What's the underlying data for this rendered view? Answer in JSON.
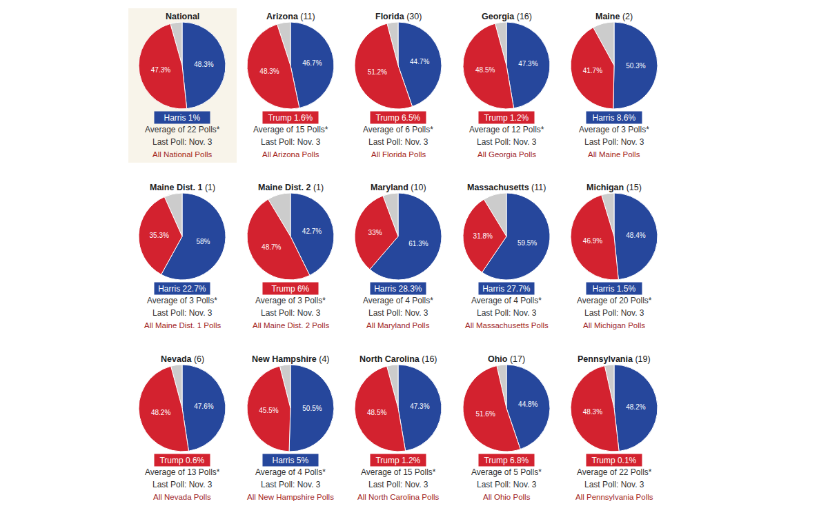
{
  "chart_data": [
    {
      "type": "pie",
      "title": "National",
      "values": [
        48.3,
        4.4,
        47.3
      ],
      "value_labels": [
        "48.3%",
        null,
        "47.3%"
      ],
      "colors": [
        "#26479c",
        "#cccccc",
        "#d3222f"
      ],
      "data_labels": true,
      "margin_label": "Harris 1%",
      "margin_color": "#26479c",
      "polls_note": "Average of 22 Polls*",
      "last_poll": "Last Poll: Nov. 3",
      "link": "All National Polls"
    },
    {
      "type": "pie",
      "title": "Arizona",
      "title_note": "(11)",
      "values": [
        46.7,
        5.0,
        48.3
      ],
      "value_labels": [
        "46.7%",
        null,
        "48.3%"
      ],
      "colors": [
        "#26479c",
        "#cccccc",
        "#d3222f"
      ],
      "data_labels": true,
      "margin_label": "Trump 1.6%",
      "margin_color": "#d3222f",
      "polls_note": "Average of 15 Polls*",
      "last_poll": "Last Poll: Nov. 3",
      "link": "All Arizona Polls"
    },
    {
      "type": "pie",
      "title": "Florida",
      "title_note": "(30)",
      "values": [
        44.7,
        4.1,
        51.2
      ],
      "value_labels": [
        "44.7%",
        null,
        "51.2%"
      ],
      "colors": [
        "#26479c",
        "#cccccc",
        "#d3222f"
      ],
      "data_labels": true,
      "margin_label": "Trump 6.5%",
      "margin_color": "#d3222f",
      "polls_note": "Average of 6 Polls*",
      "last_poll": "Last Poll: Nov. 3",
      "link": "All Florida Polls"
    },
    {
      "type": "pie",
      "title": "Georgia",
      "title_note": "(16)",
      "values": [
        47.3,
        4.2,
        48.5
      ],
      "value_labels": [
        "47.3%",
        null,
        "48.5%"
      ],
      "colors": [
        "#26479c",
        "#cccccc",
        "#d3222f"
      ],
      "data_labels": true,
      "margin_label": "Trump 1.2%",
      "margin_color": "#d3222f",
      "polls_note": "Average of 12 Polls*",
      "last_poll": "Last Poll: Nov. 3",
      "link": "All Georgia Polls"
    },
    {
      "type": "pie",
      "title": "Maine",
      "title_note": "(2)",
      "values": [
        50.3,
        8.0,
        41.7
      ],
      "value_labels": [
        "50.3%",
        null,
        "41.7%"
      ],
      "colors": [
        "#26479c",
        "#cccccc",
        "#d3222f"
      ],
      "data_labels": true,
      "margin_label": "Harris 8.6%",
      "margin_color": "#26479c",
      "polls_note": "Average of 3 Polls*",
      "last_poll": "Last Poll: Nov. 3",
      "link": "All Maine Polls"
    },
    {
      "type": "pie",
      "title": "Maine Dist. 1",
      "title_note": "(1)",
      "values": [
        58,
        6.7,
        35.3
      ],
      "value_labels": [
        "58%",
        null,
        "35.3%"
      ],
      "colors": [
        "#26479c",
        "#cccccc",
        "#d3222f"
      ],
      "data_labels": true,
      "margin_label": "Harris 22.7%",
      "margin_color": "#26479c",
      "polls_note": "Average of 3 Polls*",
      "last_poll": "Last Poll: Nov. 3",
      "link": "All Maine Dist. 1 Polls"
    },
    {
      "type": "pie",
      "title": "Maine Dist. 2",
      "title_note": "(1)",
      "values": [
        42.7,
        8.6,
        48.7
      ],
      "value_labels": [
        "42.7%",
        null,
        "48.7%"
      ],
      "colors": [
        "#26479c",
        "#cccccc",
        "#d3222f"
      ],
      "data_labels": true,
      "margin_label": "Trump 6%",
      "margin_color": "#d3222f",
      "polls_note": "Average of 3 Polls*",
      "last_poll": "Last Poll: Nov. 3",
      "link": "All Maine Dist. 2 Polls"
    },
    {
      "type": "pie",
      "title": "Maryland",
      "title_note": "(10)",
      "values": [
        61.3,
        5.7,
        33
      ],
      "value_labels": [
        "61.3%",
        null,
        "33%"
      ],
      "colors": [
        "#26479c",
        "#cccccc",
        "#d3222f"
      ],
      "data_labels": true,
      "margin_label": "Harris 28.3%",
      "margin_color": "#26479c",
      "polls_note": "Average of 4 Polls*",
      "last_poll": "Last Poll: Nov. 3",
      "link": "All Maryland Polls"
    },
    {
      "type": "pie",
      "title": "Massachusetts",
      "title_note": "(11)",
      "values": [
        59.5,
        8.7,
        31.8
      ],
      "value_labels": [
        "59.5%",
        null,
        "31.8%"
      ],
      "colors": [
        "#26479c",
        "#cccccc",
        "#d3222f"
      ],
      "data_labels": true,
      "margin_label": "Harris 27.7%",
      "margin_color": "#26479c",
      "polls_note": "Average of 4 Polls*",
      "last_poll": "Last Poll: Nov. 3",
      "link": "All Massachusetts Polls"
    },
    {
      "type": "pie",
      "title": "Michigan",
      "title_note": "(15)",
      "values": [
        48.4,
        4.7,
        46.9
      ],
      "value_labels": [
        "48.4%",
        null,
        "46.9%"
      ],
      "colors": [
        "#26479c",
        "#cccccc",
        "#d3222f"
      ],
      "data_labels": true,
      "margin_label": "Harris 1.5%",
      "margin_color": "#26479c",
      "polls_note": "Average of 20 Polls*",
      "last_poll": "Last Poll: Nov. 3",
      "link": "All Michigan Polls"
    },
    {
      "type": "pie",
      "title": "Nevada",
      "title_note": "(6)",
      "values": [
        47.6,
        4.2,
        48.2
      ],
      "value_labels": [
        "47.6%",
        null,
        "48.2%"
      ],
      "colors": [
        "#26479c",
        "#cccccc",
        "#d3222f"
      ],
      "data_labels": true,
      "margin_label": "Trump 0.6%",
      "margin_color": "#d3222f",
      "polls_note": "Average of 13 Polls*",
      "last_poll": "Last Poll: Nov. 3",
      "link": "All Nevada Polls"
    },
    {
      "type": "pie",
      "title": "New Hampshire",
      "title_note": "(4)",
      "values": [
        50.5,
        4.0,
        45.5
      ],
      "value_labels": [
        "50.5%",
        null,
        "45.5%"
      ],
      "colors": [
        "#26479c",
        "#cccccc",
        "#d3222f"
      ],
      "data_labels": true,
      "margin_label": "Harris 5%",
      "margin_color": "#26479c",
      "polls_note": "Average of 4 Polls*",
      "last_poll": "Last Poll: Nov. 3",
      "link": "All New Hampshire Polls"
    },
    {
      "type": "pie",
      "title": "North Carolina",
      "title_note": "(16)",
      "values": [
        47.3,
        4.2,
        48.5
      ],
      "value_labels": [
        "47.3%",
        null,
        "48.5%"
      ],
      "colors": [
        "#26479c",
        "#cccccc",
        "#d3222f"
      ],
      "data_labels": true,
      "margin_label": "Trump 1.2%",
      "margin_color": "#d3222f",
      "polls_note": "Average of 15 Polls*",
      "last_poll": "Last Poll: Nov. 3",
      "link": "All North Carolina Polls"
    },
    {
      "type": "pie",
      "title": "Ohio",
      "title_note": "(17)",
      "values": [
        44.8,
        3.6,
        51.6
      ],
      "value_labels": [
        "44.8%",
        null,
        "51.6%"
      ],
      "colors": [
        "#26479c",
        "#cccccc",
        "#d3222f"
      ],
      "data_labels": true,
      "margin_label": "Trump 6.8%",
      "margin_color": "#d3222f",
      "polls_note": "Average of 5 Polls*",
      "last_poll": "Last Poll: Nov. 3",
      "link": "All Ohio Polls"
    },
    {
      "type": "pie",
      "title": "Pennsylvania",
      "title_note": "(19)",
      "values": [
        48.2,
        3.5,
        48.3
      ],
      "value_labels": [
        "48.2%",
        null,
        "48.3%"
      ],
      "colors": [
        "#26479c",
        "#cccccc",
        "#d3222f"
      ],
      "data_labels": true,
      "margin_label": "Trump 0.1%",
      "margin_color": "#d3222f",
      "polls_note": "Average of 22 Polls*",
      "last_poll": "Last Poll: Nov. 3",
      "link": "All Pennsylvania Polls"
    }
  ]
}
